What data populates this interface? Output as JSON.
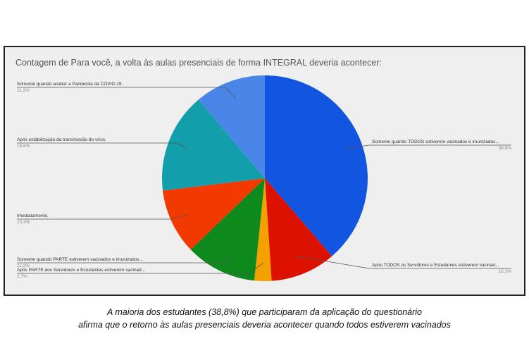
{
  "chart_data": {
    "type": "pie",
    "title": "Contagem de Para você, a volta às aulas presenciais de forma INTEGRAL deveria acontecer:",
    "slices": [
      {
        "label": "Somente quando TODOS estiverem vacinados e imunizados...",
        "value": 38.8,
        "value_label": "38,8%",
        "color": "#1155e0"
      },
      {
        "label": "Após TODOS os Servidores e Estudantes estiverem vacinad...",
        "value": 10.3,
        "value_label": "10,3%",
        "color": "#dd1100"
      },
      {
        "label": "Após PARTE dos Servidores e Estudantes estiverem vacinad...",
        "value": 2.7,
        "value_label": "2,7%",
        "color": "#f2a100"
      },
      {
        "label": "Somente quando PARTE estiverem vacinados e imunizados...",
        "value": 11.2,
        "value_label": "11,2%",
        "color": "#0e8a1c"
      },
      {
        "label": "Imediatamente.",
        "value": 10.3,
        "value_label": "10,3%",
        "color": "#f23a00"
      },
      {
        "label": "Após estabilização da transmissão do vírus.",
        "value": 15.8,
        "value_label": "15,8%",
        "color": "#139eab"
      },
      {
        "label": "Somente quando acabar a Pandemia da COVID-19.",
        "value": 11.2,
        "value_label": "11,2%",
        "color": "#4a86e8"
      }
    ]
  },
  "caption": {
    "line1": "A maioria dos estudantes (38,8%) que participaram da aplicação do questionário",
    "line2": "afirma que o retorno às aulas presenciais deveria acontecer quando todos estiverem vacinados"
  }
}
